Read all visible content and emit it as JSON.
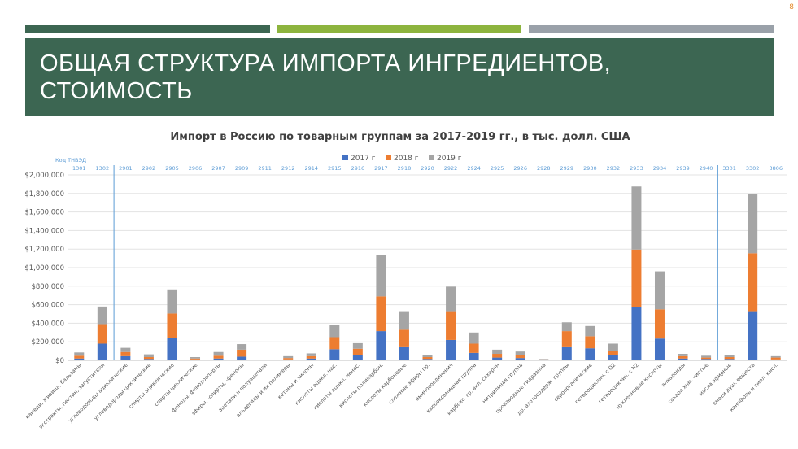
{
  "slide": {
    "page_number": "8",
    "title": "ОБЩАЯ СТРУКТУРА ИМПОРТА ИНГРЕДИЕНТОВ, СТОИМОСТЬ"
  },
  "chart_data": {
    "type": "bar",
    "stacked": true,
    "title": "Импорт в Россию по товарным группам за 2017-2019 гг., в тыс. долл. США",
    "code_axis_label": "Код ТНВЭД",
    "codes": [
      "1301",
      "1302",
      "2901",
      "2902",
      "2905",
      "2906",
      "2907",
      "2909",
      "2911",
      "2912",
      "2914",
      "2915",
      "2916",
      "2917",
      "2918",
      "2920",
      "2922",
      "2924",
      "2925",
      "2926",
      "2928",
      "2929",
      "2930",
      "2932",
      "2933",
      "2934",
      "2939",
      "2940",
      "3301",
      "3302",
      "3806"
    ],
    "categories": [
      "камеди, живица, бальзамы",
      "экстракты, пектин, загустители",
      "углеводороды ациклические",
      "углеводороды циклические",
      "спирты ациклические",
      "спирты циклические",
      "фенолы, фенолоспирты",
      "эфиры, -спирты, -фенолы",
      "ацетали и полуацетали",
      "альдегиды и их полимеры",
      "кетоны и хиноны",
      "кислоты ацикл. нас.",
      "кислоты ацикл. ненас.",
      "кислоты поликарбон.",
      "кислоты карбоновые",
      "сложные эфиры пр.",
      "аминосоединения",
      "карбоксамидная группа",
      "карбокс. гр. вкл. сахарин",
      "нитрильная группа",
      "производные гидразина",
      "др. азотосодерж. группы",
      "сероорганические",
      "гетероциклич. с O2",
      "гетероциклич. с N2",
      "нуклеиновые кислоты",
      "алкалоиды",
      "сахара хим. чистые",
      "масла эфирные",
      "смеси душ. веществ",
      "канифоль и смол. кисл."
    ],
    "series": [
      {
        "name": "2017 г",
        "color": "#4472c4",
        "values": [
          20000,
          180000,
          45000,
          15000,
          240000,
          10000,
          20000,
          40000,
          2000,
          10000,
          20000,
          120000,
          55000,
          315000,
          150000,
          15000,
          220000,
          80000,
          30000,
          25000,
          5000,
          150000,
          130000,
          55000,
          575000,
          235000,
          20000,
          15000,
          15000,
          530000,
          10000
        ]
      },
      {
        "name": "2018 г",
        "color": "#ed7d31",
        "values": [
          30000,
          210000,
          45000,
          20000,
          265000,
          10000,
          30000,
          75000,
          2000,
          15000,
          25000,
          130000,
          70000,
          375000,
          180000,
          20000,
          310000,
          100000,
          40000,
          35000,
          5000,
          165000,
          130000,
          50000,
          620000,
          315000,
          25000,
          15000,
          20000,
          625000,
          20000
        ]
      },
      {
        "name": "2019 г",
        "color": "#a5a5a5",
        "values": [
          35000,
          190000,
          45000,
          30000,
          260000,
          15000,
          40000,
          60000,
          2000,
          20000,
          30000,
          135000,
          60000,
          450000,
          200000,
          25000,
          265000,
          120000,
          45000,
          35000,
          5000,
          95000,
          110000,
          75000,
          680000,
          410000,
          25000,
          20000,
          20000,
          640000,
          15000
        ]
      }
    ],
    "ylim": [
      0,
      2000000
    ],
    "ytick_step": 200000,
    "ytick_labels": [
      "$0",
      "$200,000",
      "$400,000",
      "$600,000",
      "$800,000",
      "$1,000,000",
      "$1,200,000",
      "$1,400,000",
      "$1,600,000",
      "$1,800,000",
      "$2,000,000"
    ],
    "separator_after_index": [
      1,
      27
    ],
    "grid": true,
    "legend_position": "top"
  }
}
